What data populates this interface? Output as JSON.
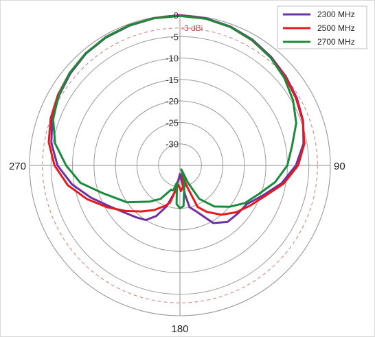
{
  "chart_data": {
    "type": "polar-line",
    "r_ticks": [
      {
        "value": 0,
        "label": "0"
      },
      {
        "value": -5,
        "label": "-5"
      },
      {
        "value": -10,
        "label": "-10"
      },
      {
        "value": -15,
        "label": "-15"
      },
      {
        "value": -20,
        "label": "-20"
      },
      {
        "value": -25,
        "label": "-25"
      },
      {
        "value": -30,
        "label": "-30"
      }
    ],
    "r_range": [
      -35,
      0
    ],
    "reference_circle": {
      "value": -3,
      "label": "-3 dBi",
      "color": "#c0504d"
    },
    "angle_labels": [
      {
        "angle": 90,
        "label": "90"
      },
      {
        "angle": 180,
        "label": "180"
      },
      {
        "angle": 270,
        "label": "270"
      }
    ],
    "grid": true,
    "legend_position": "top-right",
    "series": [
      {
        "name": "2300 MHz",
        "color": "#7030a0",
        "points": [
          [
            0,
            0
          ],
          [
            10,
            -0.2
          ],
          [
            20,
            -0.6
          ],
          [
            30,
            -1.2
          ],
          [
            40,
            -2.0
          ],
          [
            50,
            -2.8
          ],
          [
            60,
            -3.6
          ],
          [
            70,
            -4.5
          ],
          [
            80,
            -5.8
          ],
          [
            90,
            -8
          ],
          [
            100,
            -11
          ],
          [
            110,
            -14.5
          ],
          [
            120,
            -17
          ],
          [
            130,
            -17.5
          ],
          [
            140,
            -17.8
          ],
          [
            150,
            -19.5
          ],
          [
            160,
            -23.5
          ],
          [
            167,
            -25
          ],
          [
            170,
            -28
          ],
          [
            175,
            -32
          ],
          [
            180,
            -33
          ],
          [
            185,
            -32
          ],
          [
            190,
            -29
          ],
          [
            198,
            -25
          ],
          [
            205,
            -22
          ],
          [
            212,
            -20
          ],
          [
            220,
            -19.2
          ],
          [
            230,
            -18
          ],
          [
            240,
            -16
          ],
          [
            250,
            -13
          ],
          [
            260,
            -9.5
          ],
          [
            270,
            -6.5
          ],
          [
            280,
            -4.6
          ],
          [
            290,
            -3.4
          ],
          [
            300,
            -2.5
          ],
          [
            310,
            -1.7
          ],
          [
            320,
            -1.0
          ],
          [
            330,
            -0.6
          ],
          [
            340,
            -0.4
          ],
          [
            350,
            -0.2
          ]
        ]
      },
      {
        "name": "2500 MHz",
        "color": "#e41a1c",
        "points": [
          [
            0,
            -0.1
          ],
          [
            10,
            -0.3
          ],
          [
            20,
            -0.7
          ],
          [
            30,
            -1.4
          ],
          [
            40,
            -2.2
          ],
          [
            50,
            -3.0
          ],
          [
            60,
            -3.8
          ],
          [
            70,
            -4.6
          ],
          [
            80,
            -5.6
          ],
          [
            90,
            -7.5
          ],
          [
            100,
            -10.5
          ],
          [
            110,
            -14
          ],
          [
            120,
            -16.2
          ],
          [
            130,
            -18
          ],
          [
            140,
            -20
          ],
          [
            150,
            -22.5
          ],
          [
            157,
            -24.5
          ],
          [
            162,
            -30
          ],
          [
            165,
            -33
          ],
          [
            172,
            -30
          ],
          [
            178,
            -29
          ],
          [
            185,
            -30.5
          ],
          [
            190,
            -29
          ],
          [
            195,
            -26
          ],
          [
            200,
            -25
          ],
          [
            210,
            -23
          ],
          [
            220,
            -21
          ],
          [
            230,
            -18.5
          ],
          [
            240,
            -15.5
          ],
          [
            250,
            -12
          ],
          [
            260,
            -8.5
          ],
          [
            270,
            -5.8
          ],
          [
            280,
            -4.0
          ],
          [
            290,
            -3.0
          ],
          [
            300,
            -2.2
          ],
          [
            310,
            -1.5
          ],
          [
            320,
            -0.9
          ],
          [
            330,
            -0.5
          ],
          [
            340,
            -0.3
          ],
          [
            350,
            -0.2
          ]
        ]
      },
      {
        "name": "2700 MHz",
        "color": "#1a8a3c",
        "points": [
          [
            0,
            -0.2
          ],
          [
            10,
            -0.3
          ],
          [
            20,
            -0.7
          ],
          [
            30,
            -1.3
          ],
          [
            40,
            -2.2
          ],
          [
            50,
            -3.3
          ],
          [
            60,
            -4.6
          ],
          [
            70,
            -6.2
          ],
          [
            80,
            -8.5
          ],
          [
            90,
            -10
          ],
          [
            100,
            -12.5
          ],
          [
            110,
            -15.5
          ],
          [
            120,
            -17.5
          ],
          [
            130,
            -20
          ],
          [
            140,
            -22.5
          ],
          [
            150,
            -26
          ],
          [
            155,
            -30.5
          ],
          [
            160,
            -34
          ],
          [
            165,
            -31
          ],
          [
            175,
            -25.5
          ],
          [
            180,
            -25
          ],
          [
            185,
            -26
          ],
          [
            190,
            -31
          ],
          [
            195,
            -29
          ],
          [
            200,
            -29
          ],
          [
            210,
            -26
          ],
          [
            220,
            -24
          ],
          [
            235,
            -20
          ],
          [
            250,
            -16
          ],
          [
            260,
            -11.5
          ],
          [
            270,
            -8.5
          ],
          [
            280,
            -5.5
          ],
          [
            290,
            -3.6
          ],
          [
            300,
            -2.4
          ],
          [
            310,
            -1.5
          ],
          [
            320,
            -0.9
          ],
          [
            330,
            -0.5
          ],
          [
            340,
            -0.3
          ],
          [
            350,
            -0.2
          ]
        ]
      }
    ]
  }
}
